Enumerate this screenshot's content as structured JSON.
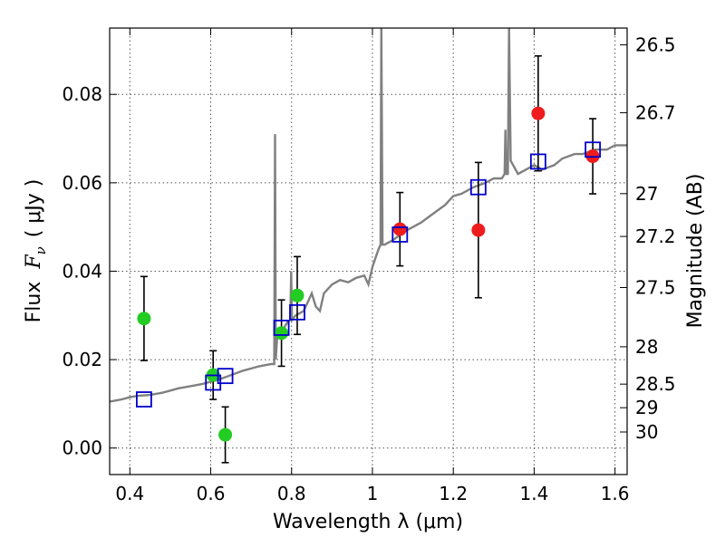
{
  "chart_data": {
    "type": "scatter",
    "xlabel": "Wavelength  λ (μm)",
    "ylabel_prefix": "Flux",
    "ylabel_symbol": "F",
    "ylabel_sub": "ν",
    "ylabel_unit": "( μJy )",
    "y2label": "Magnitude (AB)",
    "xlim": [
      0.35,
      1.63
    ],
    "ylim": [
      -0.006,
      0.095
    ],
    "grid": true,
    "x_ticks": [
      {
        "value": 0.4,
        "label": "0.4"
      },
      {
        "value": 0.6,
        "label": "0.6"
      },
      {
        "value": 0.8,
        "label": "0.8"
      },
      {
        "value": 1.0,
        "label": "1"
      },
      {
        "value": 1.2,
        "label": "1.2"
      },
      {
        "value": 1.4,
        "label": "1.4"
      },
      {
        "value": 1.6,
        "label": "1.6"
      }
    ],
    "y_ticks": [
      {
        "value": 0.0,
        "label": "0.00"
      },
      {
        "value": 0.02,
        "label": "0.02"
      },
      {
        "value": 0.04,
        "label": "0.04"
      },
      {
        "value": 0.06,
        "label": "0.06"
      },
      {
        "value": 0.08,
        "label": "0.08"
      }
    ],
    "mag_ticks": [
      {
        "mag": 26.5,
        "label": "26.5"
      },
      {
        "mag": 26.7,
        "label": "26.7"
      },
      {
        "mag": 27,
        "label": "27"
      },
      {
        "mag": 27.2,
        "label": "27.2"
      },
      {
        "mag": 27.5,
        "label": "27.5"
      },
      {
        "mag": 28,
        "label": "28"
      },
      {
        "mag": 28.5,
        "label": "28.5"
      },
      {
        "mag": 29,
        "label": "29"
      },
      {
        "mag": 30,
        "label": "30"
      }
    ],
    "colors": {
      "model": "#808080",
      "optical": "#22cc22",
      "nir": "#ee1c1c",
      "model_band": "#0000cc",
      "errorbar": "#000000",
      "grid": "#555555"
    },
    "model_spectrum": [
      [
        0.35,
        0.0105
      ],
      [
        0.38,
        0.011
      ],
      [
        0.4,
        0.0115
      ],
      [
        0.42,
        0.0118
      ],
      [
        0.45,
        0.012
      ],
      [
        0.48,
        0.0125
      ],
      [
        0.5,
        0.013
      ],
      [
        0.52,
        0.0135
      ],
      [
        0.55,
        0.014
      ],
      [
        0.58,
        0.0145
      ],
      [
        0.6,
        0.015
      ],
      [
        0.62,
        0.0155
      ],
      [
        0.65,
        0.0165
      ],
      [
        0.68,
        0.0175
      ],
      [
        0.7,
        0.018
      ],
      [
        0.72,
        0.0185
      ],
      [
        0.75,
        0.019
      ],
      [
        0.757,
        0.019
      ],
      [
        0.759,
        0.071
      ],
      [
        0.761,
        0.02
      ],
      [
        0.765,
        0.026
      ],
      [
        0.78,
        0.027
      ],
      [
        0.79,
        0.0285
      ],
      [
        0.797,
        0.029
      ],
      [
        0.799,
        0.04
      ],
      [
        0.801,
        0.029
      ],
      [
        0.81,
        0.03
      ],
      [
        0.83,
        0.031
      ],
      [
        0.84,
        0.033
      ],
      [
        0.85,
        0.035
      ],
      [
        0.86,
        0.032
      ],
      [
        0.87,
        0.031
      ],
      [
        0.88,
        0.035
      ],
      [
        0.9,
        0.037
      ],
      [
        0.92,
        0.038
      ],
      [
        0.94,
        0.0375
      ],
      [
        0.96,
        0.0385
      ],
      [
        0.98,
        0.039
      ],
      [
        0.99,
        0.037
      ],
      [
        1.0,
        0.041
      ],
      [
        1.015,
        0.045
      ],
      [
        1.02,
        0.046
      ],
      [
        1.022,
        0.095
      ],
      [
        1.025,
        0.046
      ],
      [
        1.03,
        0.046
      ],
      [
        1.05,
        0.047
      ],
      [
        1.08,
        0.049
      ],
      [
        1.1,
        0.05
      ],
      [
        1.12,
        0.051
      ],
      [
        1.15,
        0.053
      ],
      [
        1.18,
        0.055
      ],
      [
        1.2,
        0.057
      ],
      [
        1.22,
        0.0575
      ],
      [
        1.25,
        0.059
      ],
      [
        1.28,
        0.06
      ],
      [
        1.3,
        0.061
      ],
      [
        1.32,
        0.061
      ],
      [
        1.327,
        0.062
      ],
      [
        1.329,
        0.072
      ],
      [
        1.331,
        0.062
      ],
      [
        1.335,
        0.062
      ],
      [
        1.338,
        0.095
      ],
      [
        1.342,
        0.065
      ],
      [
        1.36,
        0.062
      ],
      [
        1.38,
        0.063
      ],
      [
        1.4,
        0.064
      ],
      [
        1.42,
        0.063
      ],
      [
        1.45,
        0.064
      ],
      [
        1.47,
        0.0655
      ],
      [
        1.5,
        0.0665
      ],
      [
        1.52,
        0.0665
      ],
      [
        1.55,
        0.0675
      ],
      [
        1.58,
        0.0675
      ],
      [
        1.6,
        0.0685
      ],
      [
        1.63,
        0.0685
      ]
    ],
    "series": [
      {
        "marker": "circle",
        "color": "#22cc22",
        "points": [
          {
            "x": 0.435,
            "y": 0.0293,
            "err": 0.0095
          },
          {
            "x": 0.606,
            "y": 0.0165,
            "err": 0.0055
          },
          {
            "x": 0.636,
            "y": 0.003,
            "err": 0.0063
          },
          {
            "x": 0.775,
            "y": 0.026,
            "err": 0.0075
          },
          {
            "x": 0.814,
            "y": 0.0345,
            "err": 0.0088
          }
        ]
      },
      {
        "marker": "circle",
        "color": "#ee1c1c",
        "points": [
          {
            "x": 1.068,
            "y": 0.0495,
            "err": 0.0083
          },
          {
            "x": 1.262,
            "y": 0.0493,
            "err": 0.0153
          },
          {
            "x": 1.41,
            "y": 0.0757,
            "err": 0.013
          },
          {
            "x": 1.545,
            "y": 0.066,
            "err": 0.0085
          }
        ]
      },
      {
        "marker": "square",
        "color": "#0000cc",
        "points": [
          {
            "x": 0.435,
            "y": 0.011
          },
          {
            "x": 0.606,
            "y": 0.0148
          },
          {
            "x": 0.636,
            "y": 0.0163
          },
          {
            "x": 0.775,
            "y": 0.0272
          },
          {
            "x": 0.814,
            "y": 0.0307
          },
          {
            "x": 1.068,
            "y": 0.0483
          },
          {
            "x": 1.262,
            "y": 0.059
          },
          {
            "x": 1.41,
            "y": 0.0648
          },
          {
            "x": 1.545,
            "y": 0.0675
          }
        ]
      }
    ]
  }
}
